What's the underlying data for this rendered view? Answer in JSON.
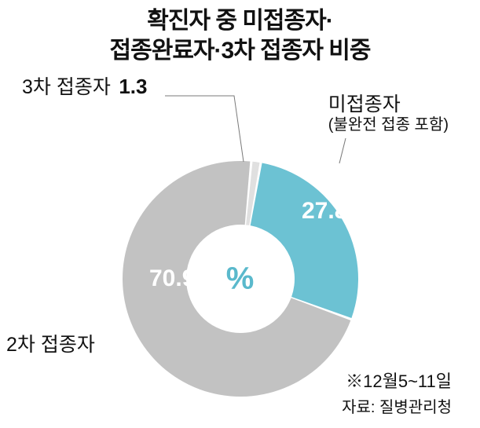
{
  "title_line1": "확진자 중 미접종자·",
  "title_line2": "접종완료자·3차 접종자 비중",
  "title_fontsize": 30,
  "title_color": "#111111",
  "chart": {
    "type": "donut",
    "center_symbol": "%",
    "center_symbol_color": "#5ab9cc",
    "center_symbol_fontsize": 40,
    "inner_radius_ratio": 0.46,
    "background_color": "#ffffff",
    "slice_gap_deg": 1.2,
    "slices": [
      {
        "key": "unvaccinated",
        "label": "미접종자",
        "sublabel": "(불완전 접종 포함)",
        "value": 27.8,
        "color": "#6cc2d3"
      },
      {
        "key": "second_dose",
        "label": "2차 접종자",
        "value": 70.9,
        "color": "#c2c2c2"
      },
      {
        "key": "third_dose",
        "label": "3차 접종자",
        "value": 1.3,
        "color": "#e0e0e0"
      }
    ],
    "start_angle_deg": 10,
    "direction": "clockwise"
  },
  "labels": {
    "unvaccinated": {
      "cat_text": "미접종자",
      "sub_text": "(불완전 접종 포함)",
      "cat_fontsize": 25,
      "sub_fontsize": 20,
      "cat_color": "#111111",
      "sub_color": "#111111",
      "value_text": "27.8",
      "value_fontsize": 30,
      "value_color": "#ffffff"
    },
    "second_dose": {
      "cat_text": "2차 접종자",
      "cat_fontsize": 25,
      "cat_color": "#111111",
      "value_text": "70.9",
      "value_fontsize": 30,
      "value_color": "#ffffff"
    },
    "third_dose": {
      "cat_text": "3차 접종자",
      "cat_fontsize": 25,
      "cat_color": "#111111",
      "value_text": "1.3",
      "value_fontsize": 26,
      "value_color": "#111111"
    }
  },
  "footer": {
    "period": "※12월5~11일",
    "period_fontsize": 22,
    "source": "자료: 질병관리청",
    "source_fontsize": 20,
    "color": "#111111"
  },
  "leader_color": "#7a7a7a",
  "leader_width": 1
}
